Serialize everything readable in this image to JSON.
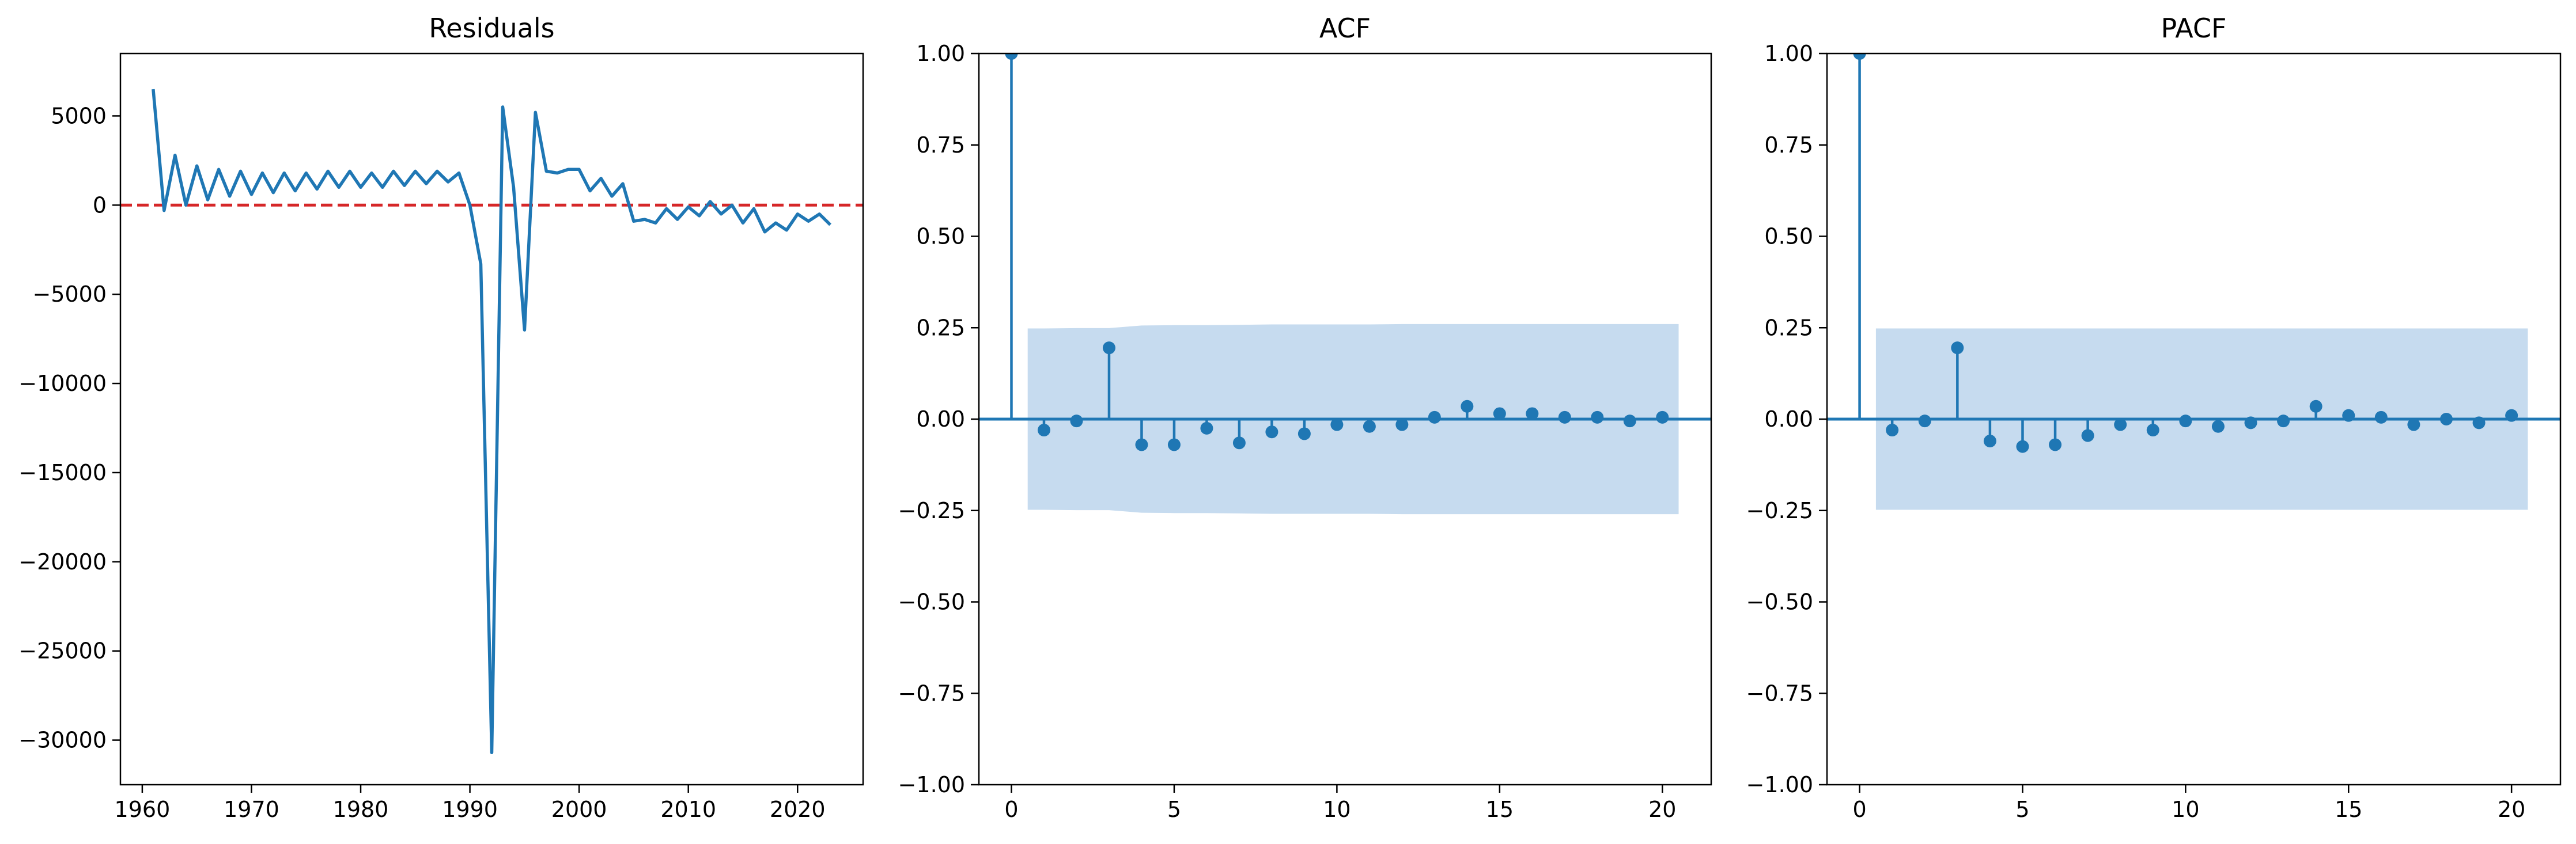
{
  "colors": {
    "line": "#1f77b4",
    "zero_line": "#d62728",
    "band": "#c6dbef",
    "axis": "#000000"
  },
  "chart_data": [
    {
      "type": "line",
      "title": "Residuals",
      "xlim": [
        1958,
        2026
      ],
      "ylim": [
        -32500,
        8500
      ],
      "xticks": [
        1960,
        1970,
        1980,
        1990,
        2000,
        2010,
        2020
      ],
      "yticks": [
        5000,
        0,
        -5000,
        -10000,
        -15000,
        -20000,
        -25000,
        -30000
      ],
      "ytick_labels": [
        "5000",
        "0",
        "−5000",
        "−10000",
        "−15000",
        "−20000",
        "−25000",
        "−30000"
      ],
      "reference_line": {
        "y": 0,
        "style": "dashed"
      },
      "x": [
        1961,
        1962,
        1963,
        1964,
        1965,
        1966,
        1967,
        1968,
        1969,
        1970,
        1971,
        1972,
        1973,
        1974,
        1975,
        1976,
        1977,
        1978,
        1979,
        1980,
        1981,
        1982,
        1983,
        1984,
        1985,
        1986,
        1987,
        1988,
        1989,
        1990,
        1991,
        1992,
        1993,
        1994,
        1995,
        1996,
        1997,
        1998,
        1999,
        2000,
        2001,
        2002,
        2003,
        2004,
        2005,
        2006,
        2007,
        2008,
        2009,
        2010,
        2011,
        2012,
        2013,
        2014,
        2015,
        2016,
        2017,
        2018,
        2019,
        2020,
        2021,
        2022,
        2023
      ],
      "y": [
        6500,
        -300,
        2800,
        0,
        2200,
        300,
        2000,
        500,
        1900,
        600,
        1800,
        700,
        1800,
        800,
        1800,
        900,
        1900,
        1000,
        1900,
        1000,
        1800,
        1000,
        1900,
        1100,
        1900,
        1200,
        1900,
        1300,
        1800,
        0,
        -3300,
        -30700,
        5500,
        1000,
        -7000,
        5200,
        1900,
        1800,
        2000,
        2000,
        800,
        1500,
        500,
        1200,
        -900,
        -800,
        -1000,
        -200,
        -800,
        -100,
        -600,
        200,
        -500,
        0,
        -1000,
        -200,
        -1500,
        -1000,
        -1400,
        -500,
        -900,
        -500,
        -1100
      ]
    },
    {
      "type": "stem",
      "title": "ACF",
      "xlim": [
        -1,
        21.5
      ],
      "ylim": [
        -1.0,
        1.0
      ],
      "xticks": [
        0,
        5,
        10,
        15,
        20
      ],
      "yticks": [
        1.0,
        0.75,
        0.5,
        0.25,
        0.0,
        -0.25,
        -0.5,
        -0.75,
        -1.0
      ],
      "ytick_labels": [
        "1.00",
        "0.75",
        "0.50",
        "0.25",
        "0.00",
        "−0.25",
        "−0.50",
        "−0.75",
        "−1.00"
      ],
      "lags": [
        0,
        1,
        2,
        3,
        4,
        5,
        6,
        7,
        8,
        9,
        10,
        11,
        12,
        13,
        14,
        15,
        16,
        17,
        18,
        19,
        20
      ],
      "values": [
        1.0,
        -0.03,
        -0.005,
        0.195,
        -0.07,
        -0.07,
        -0.025,
        -0.065,
        -0.035,
        -0.04,
        -0.015,
        -0.02,
        -0.015,
        0.005,
        0.035,
        0.015,
        0.015,
        0.005,
        0.005,
        -0.005,
        0.005
      ],
      "confidence_band": {
        "x": [
          0.5,
          1,
          2,
          3,
          4,
          5,
          6,
          7,
          8,
          9,
          10,
          11,
          12,
          13,
          14,
          15,
          16,
          17,
          18,
          19,
          20,
          20.5
        ],
        "upper": [
          0.248,
          0.248,
          0.249,
          0.249,
          0.256,
          0.257,
          0.257,
          0.258,
          0.259,
          0.259,
          0.259,
          0.259,
          0.26,
          0.26,
          0.26,
          0.26,
          0.26,
          0.26,
          0.26,
          0.26,
          0.26,
          0.26
        ]
      }
    },
    {
      "type": "stem",
      "title": "PACF",
      "xlim": [
        -1,
        21.5
      ],
      "ylim": [
        -1.0,
        1.0
      ],
      "xticks": [
        0,
        5,
        10,
        15,
        20
      ],
      "yticks": [
        1.0,
        0.75,
        0.5,
        0.25,
        0.0,
        -0.25,
        -0.5,
        -0.75,
        -1.0
      ],
      "ytick_labels": [
        "1.00",
        "0.75",
        "0.50",
        "0.25",
        "0.00",
        "−0.25",
        "−0.50",
        "−0.75",
        "−1.00"
      ],
      "lags": [
        0,
        1,
        2,
        3,
        4,
        5,
        6,
        7,
        8,
        9,
        10,
        11,
        12,
        13,
        14,
        15,
        16,
        17,
        18,
        19,
        20
      ],
      "values": [
        1.0,
        -0.03,
        -0.005,
        0.195,
        -0.06,
        -0.075,
        -0.07,
        -0.045,
        -0.015,
        -0.03,
        -0.005,
        -0.02,
        -0.01,
        -0.005,
        0.035,
        0.01,
        0.005,
        -0.015,
        0.0,
        -0.01,
        0.01
      ],
      "confidence_band": {
        "x": [
          0.5,
          20.5
        ],
        "upper": [
          0.248,
          0.248
        ]
      }
    }
  ]
}
